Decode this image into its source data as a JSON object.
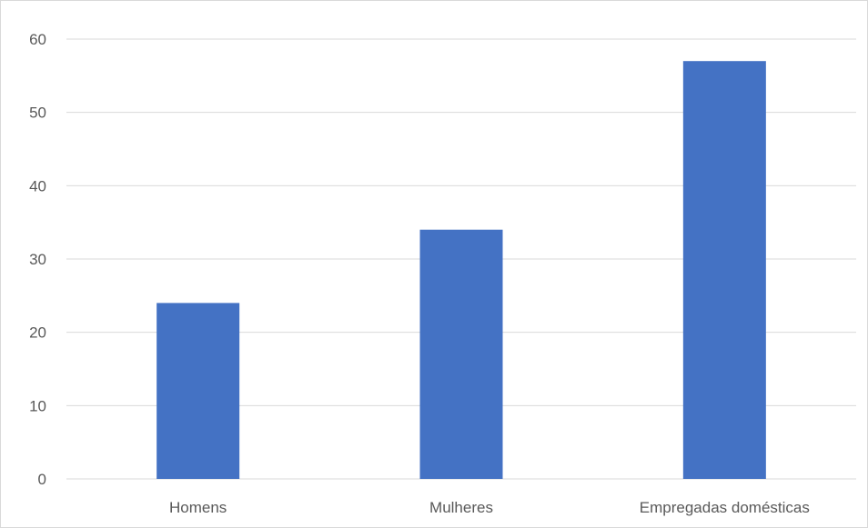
{
  "chart_data": {
    "type": "bar",
    "categories": [
      "Homens",
      "Mulheres",
      "Empregadas domésticas"
    ],
    "values": [
      24,
      34,
      57
    ],
    "title": "",
    "xlabel": "",
    "ylabel": "",
    "ylim": [
      0,
      60
    ],
    "yticks": [
      "0",
      "10",
      "20",
      "30",
      "40",
      "50",
      "60"
    ],
    "grid": true,
    "legend": "none",
    "colors": {
      "bar": "#4472c4",
      "grid": "#d9d9d9",
      "text": "#595959"
    }
  }
}
